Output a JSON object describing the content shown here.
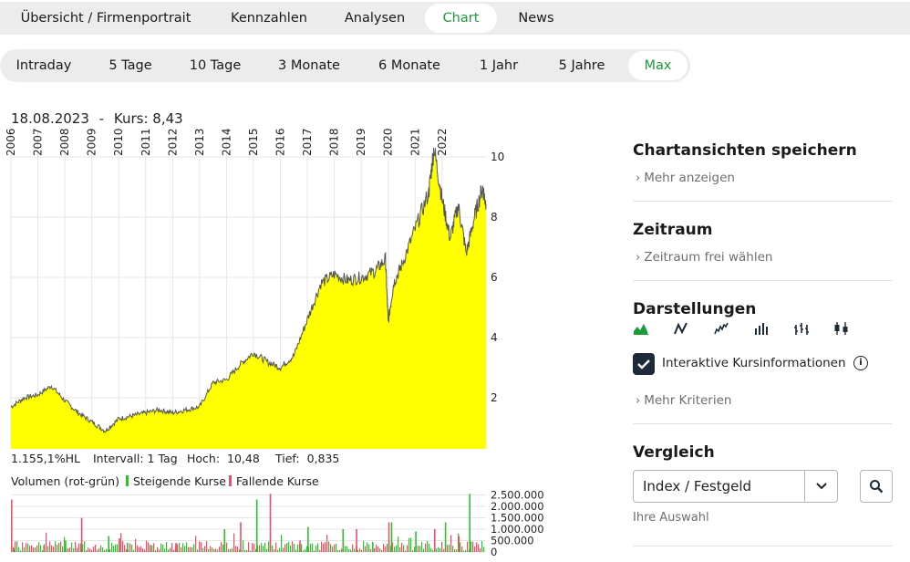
{
  "main_tabs": [
    {
      "label": "Übersicht / Firmenportrait",
      "active": false
    },
    {
      "label": "Kennzahlen",
      "active": false
    },
    {
      "label": "Analysen",
      "active": false
    },
    {
      "label": "Chart",
      "active": true
    },
    {
      "label": "News",
      "active": false
    }
  ],
  "period_tabs": [
    {
      "label": "Intraday",
      "active": false
    },
    {
      "label": "5 Tage",
      "active": false
    },
    {
      "label": "10 Tage",
      "active": false
    },
    {
      "label": "3 Monate",
      "active": false
    },
    {
      "label": "6 Monate",
      "active": false
    },
    {
      "label": "1 Jahr",
      "active": false
    },
    {
      "label": "5 Jahre",
      "active": false
    },
    {
      "label": "Max",
      "active": true
    }
  ],
  "chart_header": {
    "date": "18.08.2023",
    "separator": "-",
    "price_label": "Kurs:",
    "price": "8,43"
  },
  "stats": {
    "change": "1.155,1%HL",
    "interval_label": "Intervall:",
    "interval": "1 Tag",
    "high_label": "Hoch:",
    "high": "10,48",
    "low_label": "Tief:",
    "low": "0,835"
  },
  "volume_legend": {
    "title": "Volumen (rot-grün)",
    "rising": "Steigende Kurse",
    "falling": "Fallende Kurse"
  },
  "colors": {
    "area_fill": "#ffff00",
    "line": "#555555",
    "rising": "#2fbf2f",
    "falling": "#e8506a",
    "accent": "#1c9b3a"
  },
  "chart_data": [
    {
      "type": "area",
      "x": [
        2006.0,
        2006.5,
        2007.0,
        2007.5,
        2008.0,
        2008.5,
        2009.0,
        2009.5,
        2010.0,
        2010.5,
        2011.0,
        2011.5,
        2012.0,
        2012.5,
        2013.0,
        2013.5,
        2014.0,
        2014.5,
        2015.0,
        2015.5,
        2016.0,
        2016.5,
        2017.0,
        2017.5,
        2018.0,
        2018.5,
        2019.0,
        2019.5,
        2019.9,
        2020.0,
        2020.2,
        2020.5,
        2021.0,
        2021.5,
        2021.7,
        2022.0,
        2022.3,
        2022.6,
        2022.9,
        2023.2,
        2023.5,
        2023.63
      ],
      "y": [
        1.7,
        2.0,
        2.1,
        2.4,
        1.9,
        1.5,
        1.2,
        0.9,
        1.3,
        1.4,
        1.5,
        1.6,
        1.5,
        1.6,
        1.7,
        2.5,
        2.6,
        3.1,
        3.5,
        3.2,
        3.0,
        3.4,
        4.6,
        5.8,
        6.1,
        5.9,
        6.0,
        6.2,
        6.6,
        4.5,
        5.8,
        6.4,
        7.6,
        8.8,
        10.3,
        8.6,
        7.3,
        8.4,
        6.8,
        8.0,
        9.0,
        8.43
      ],
      "x_ticks": [
        "2006",
        "2007",
        "2008",
        "2009",
        "2010",
        "2011",
        "2012",
        "2013",
        "2014",
        "2015",
        "2016",
        "2017",
        "2018",
        "2019",
        "2020",
        "2021",
        "2022"
      ],
      "y_ticks": [
        "2",
        "4",
        "6",
        "8",
        "10"
      ],
      "ylim": [
        0.835,
        10.48
      ],
      "grid": true
    },
    {
      "type": "bar",
      "title": "Volumen (rot-grün)",
      "series": [
        {
          "name": "Steigende Kurse",
          "x": [
            2006.1,
            2008.0,
            2009.6,
            2010.3,
            2011.2,
            2013.9,
            2015.1,
            2017.0,
            2018.3,
            2019.4,
            2020.1,
            2021.0,
            2022.1,
            2023.0
          ],
          "values": [
            150000,
            500000,
            700000,
            400000,
            300000,
            1000000,
            2300000,
            1100000,
            1000000,
            400000,
            1300000,
            900000,
            1300000,
            2550000
          ]
        },
        {
          "name": "Fallende Kurse",
          "x": [
            2006.0,
            2007.2,
            2008.6,
            2010.0,
            2012.1,
            2014.5,
            2015.6,
            2016.7,
            2018.8,
            2020.0,
            2021.7,
            2022.6
          ],
          "values": [
            2300000,
            300000,
            1500000,
            600000,
            400000,
            1300000,
            2550000,
            500000,
            1000000,
            1300000,
            1000000,
            700000
          ]
        }
      ],
      "y_ticks": [
        "2.500.000",
        "2.000.000",
        "1.500.000",
        "1.000.000",
        "500.000",
        "0"
      ],
      "ylim": [
        0,
        2600000
      ]
    }
  ],
  "sidebar": {
    "saved_views_title": "Chartansichten speichern",
    "more_show": "Mehr anzeigen",
    "period_title": "Zeitraum",
    "period_link": "Zeitraum frei wählen",
    "views_title": "Darstellungen",
    "view_icons": [
      "area-chart-icon",
      "line-chart-icon",
      "smooth-line-icon",
      "ohlc-bars-icon",
      "hlc-bars-icon",
      "candlestick-icon"
    ],
    "interactive_label": "Interaktive Kursinformationen",
    "more_criteria": "Mehr Kriterien",
    "compare_title": "Vergleich",
    "select_value": "Index / Festgeld",
    "select_hint": "Ihre Auswahl"
  }
}
